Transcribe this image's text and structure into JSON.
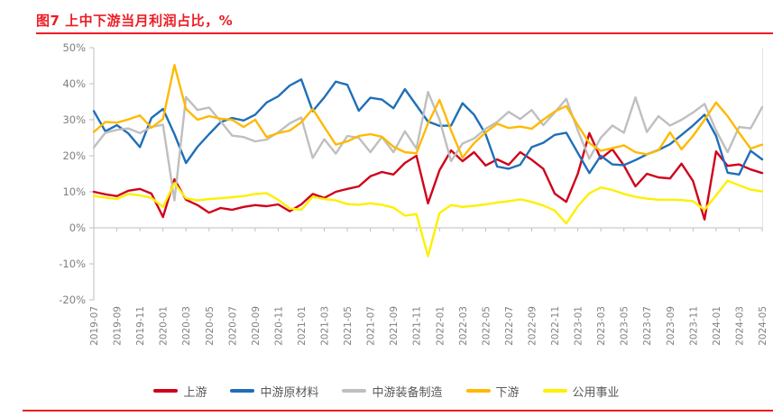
{
  "page": {
    "title": "图7  上中下游当月利润占比，%",
    "accent_color": "#ED1C24"
  },
  "chart_data": {
    "type": "line",
    "title": "上中下游当月利润占比",
    "unit": "%",
    "grid": false,
    "legend_position": "bottom",
    "ylim": [
      -20,
      50
    ],
    "y_ticks": [
      50,
      40,
      30,
      20,
      10,
      0,
      -10,
      -20
    ],
    "y_tick_suffix": "%",
    "x_tick_step": 2,
    "axis_color": "#BFBFBF",
    "tick_label_color": "#7F7F7F",
    "x": [
      "2019-07",
      "2019-08",
      "2019-09",
      "2019-10",
      "2019-11",
      "2019-12",
      "2020-01",
      "2020-02",
      "2020-03",
      "2020-04",
      "2020-05",
      "2020-06",
      "2020-07",
      "2020-08",
      "2020-09",
      "2020-10",
      "2020-11",
      "2020-12",
      "2021-01",
      "2021-02",
      "2021-03",
      "2021-04",
      "2021-05",
      "2021-06",
      "2021-07",
      "2021-08",
      "2021-09",
      "2021-10",
      "2021-11",
      "2021-12",
      "2022-01",
      "2022-02",
      "2022-03",
      "2022-04",
      "2022-05",
      "2022-06",
      "2022-07",
      "2022-08",
      "2022-09",
      "2022-10",
      "2022-11",
      "2022-12",
      "2023-01",
      "2023-02",
      "2023-03",
      "2023-04",
      "2023-05",
      "2023-06",
      "2023-07",
      "2023-08",
      "2023-09",
      "2023-10",
      "2023-11",
      "2023-12",
      "2024-01",
      "2024-02",
      "2024-03",
      "2024-04",
      "2024-05"
    ],
    "series": [
      {
        "name": "上游",
        "color": "#D0021B",
        "values": [
          10.0,
          9.3,
          8.8,
          10.3,
          10.8,
          9.5,
          3.0,
          13.5,
          7.8,
          6.3,
          4.2,
          5.5,
          5.0,
          5.8,
          6.3,
          6.0,
          6.5,
          4.6,
          6.5,
          9.4,
          8.3,
          10.0,
          10.8,
          11.5,
          14.3,
          15.5,
          14.8,
          18.0,
          20.0,
          6.8,
          16.0,
          21.5,
          18.5,
          21.0,
          17.3,
          19.0,
          17.5,
          21.0,
          18.9,
          16.4,
          9.5,
          7.2,
          15.0,
          26.3,
          19.2,
          21.8,
          17.3,
          11.5,
          15.0,
          14.0,
          13.7,
          17.8,
          13.0,
          2.3,
          21.2,
          17.2,
          17.6,
          16.2,
          15.2
        ]
      },
      {
        "name": "中游原材料",
        "color": "#1F6FB8",
        "values": [
          32.4,
          26.8,
          28.5,
          26.2,
          22.4,
          30.5,
          33.0,
          26.0,
          18.0,
          22.5,
          26.0,
          29.3,
          30.5,
          29.8,
          31.4,
          34.8,
          36.5,
          39.5,
          41.2,
          32.4,
          36.2,
          40.6,
          39.7,
          32.5,
          36.1,
          35.6,
          33.2,
          38.5,
          34.0,
          29.5,
          28.3,
          28.4,
          34.6,
          31.4,
          26.0,
          17.0,
          16.4,
          17.5,
          22.4,
          23.6,
          25.8,
          26.4,
          20.8,
          15.2,
          20.0,
          17.6,
          17.4,
          18.8,
          20.4,
          21.6,
          23.2,
          25.8,
          28.4,
          31.4,
          25.5,
          15.3,
          14.8,
          21.4,
          19.0
        ]
      },
      {
        "name": "中游装备制造",
        "color": "#BFBFBF",
        "values": [
          22.3,
          26.4,
          27.2,
          27.6,
          26.3,
          28.0,
          28.6,
          7.6,
          36.3,
          32.7,
          33.4,
          29.6,
          25.6,
          25.2,
          24.0,
          24.5,
          26.5,
          29.0,
          30.6,
          19.4,
          24.6,
          20.6,
          25.5,
          25.0,
          21.0,
          25.2,
          21.0,
          26.8,
          22.0,
          37.7,
          30.0,
          18.5,
          23.4,
          24.8,
          27.5,
          29.4,
          32.2,
          30.2,
          32.7,
          28.5,
          32.0,
          35.8,
          27.0,
          19.2,
          25.0,
          28.4,
          26.4,
          36.2,
          26.6,
          31.0,
          28.4,
          30.0,
          32.0,
          34.4,
          27.0,
          21.0,
          28.0,
          27.6,
          33.5
        ]
      },
      {
        "name": "下游",
        "color": "#FFB900",
        "values": [
          26.6,
          29.4,
          29.2,
          30.1,
          31.2,
          27.8,
          30.2,
          45.2,
          33.0,
          30.0,
          31.0,
          30.3,
          30.0,
          28.0,
          30.0,
          25.2,
          26.3,
          27.0,
          29.3,
          33.0,
          28.0,
          23.1,
          24.0,
          25.5,
          26.0,
          25.3,
          22.5,
          21.0,
          20.7,
          29.0,
          35.5,
          27.0,
          19.5,
          23.5,
          26.5,
          28.9,
          27.7,
          28.1,
          27.5,
          30.0,
          32.3,
          33.8,
          28.5,
          23.5,
          21.4,
          22.1,
          22.9,
          21.0,
          20.4,
          21.5,
          26.5,
          21.8,
          25.5,
          30.0,
          34.8,
          31.0,
          26.4,
          22.0,
          23.1
        ]
      },
      {
        "name": "公用事业",
        "color": "#FDF000",
        "values": [
          8.9,
          8.4,
          8.0,
          9.4,
          9.0,
          8.3,
          5.8,
          12.4,
          8.2,
          7.6,
          8.0,
          8.2,
          8.5,
          8.8,
          9.4,
          9.6,
          7.8,
          5.4,
          5.0,
          8.6,
          8.0,
          7.6,
          6.6,
          6.4,
          6.8,
          6.4,
          5.6,
          3.4,
          3.8,
          -7.9,
          4.1,
          6.3,
          5.8,
          6.1,
          6.5,
          7.0,
          7.4,
          7.9,
          7.2,
          6.2,
          4.8,
          1.2,
          6.0,
          9.6,
          11.2,
          10.5,
          9.4,
          8.6,
          8.1,
          7.8,
          7.8,
          7.7,
          7.4,
          5.0,
          9.0,
          13.1,
          11.8,
          10.6,
          10.1
        ]
      }
    ]
  }
}
